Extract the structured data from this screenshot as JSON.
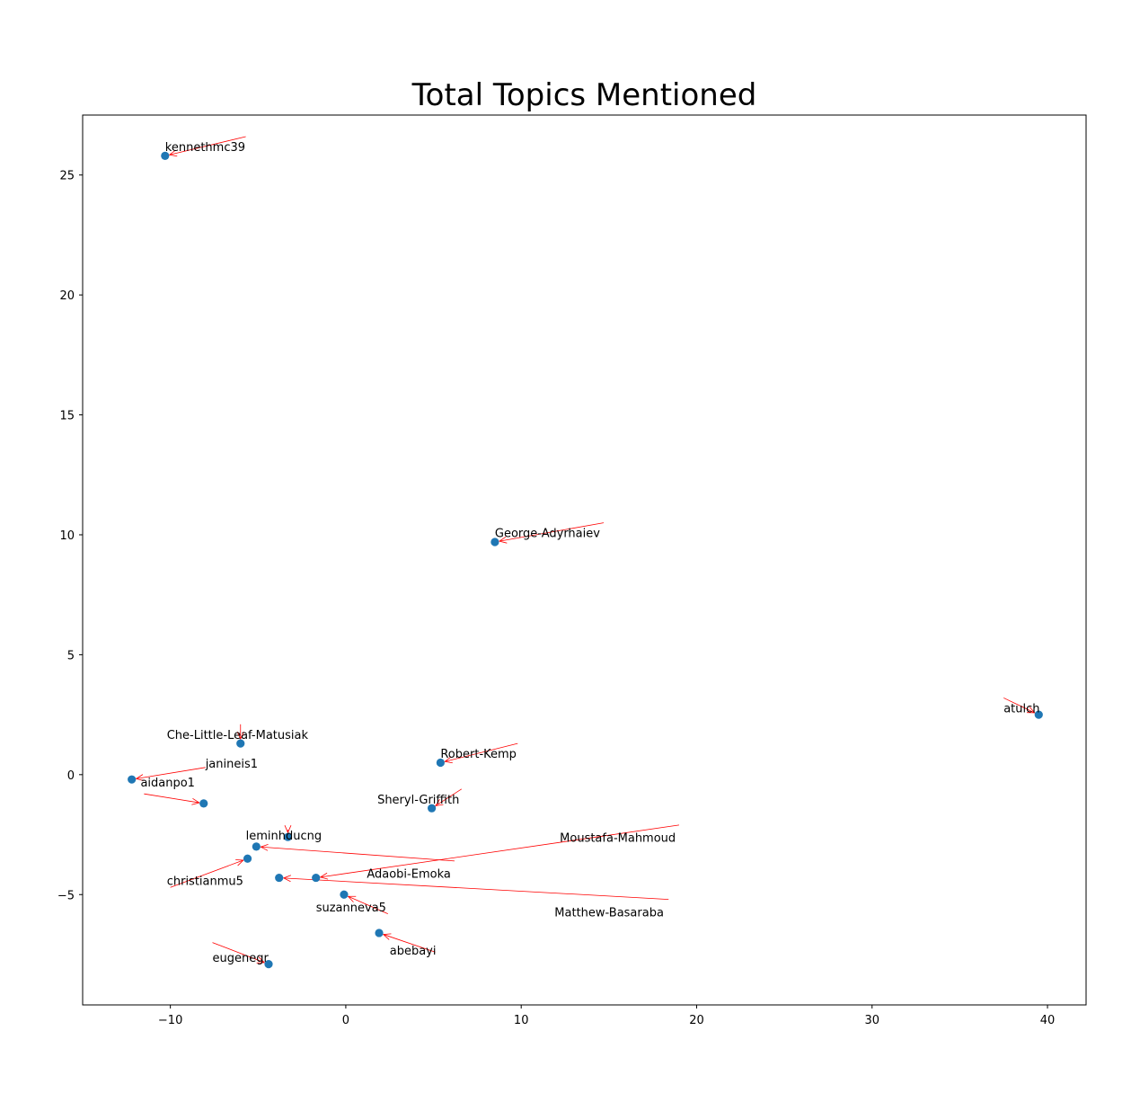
{
  "chart_data": {
    "type": "scatter",
    "title": "Total Topics Mentioned",
    "xlabel": "",
    "ylabel": "",
    "xlim": [
      -15,
      42.2
    ],
    "ylim": [
      -9.6,
      27.5
    ],
    "xticks": [
      -10,
      0,
      10,
      20,
      30,
      40
    ],
    "yticks": [
      -5,
      0,
      5,
      10,
      15,
      20,
      25
    ],
    "grid": false,
    "point_color": "#1f77b4",
    "arrow_color": "#ff0000",
    "points": [
      {
        "name": "kennethmc39",
        "x": -10.3,
        "y": 25.8,
        "label_x": -10.3,
        "label_y": 26.0,
        "arrow_from": [
          -5.7,
          26.6
        ]
      },
      {
        "name": "George-Adyrhaiev",
        "x": 8.5,
        "y": 9.7,
        "label_x": 8.5,
        "label_y": 9.9,
        "arrow_from": [
          14.7,
          10.5
        ]
      },
      {
        "name": "atulch",
        "x": 39.5,
        "y": 2.5,
        "label_x": 37.5,
        "label_y": 2.6,
        "arrow_from": [
          37.5,
          3.2
        ]
      },
      {
        "name": "Che-Little-Leaf-Matusiak",
        "x": -6.0,
        "y": 1.3,
        "label_x": -10.2,
        "label_y": 1.5,
        "arrow_from": [
          -6.0,
          2.1
        ]
      },
      {
        "name": "Robert-Kemp",
        "x": 5.4,
        "y": 0.5,
        "label_x": 5.4,
        "label_y": 0.7,
        "arrow_from": [
          9.8,
          1.3
        ]
      },
      {
        "name": "janineis1",
        "x": -12.2,
        "y": -0.2,
        "label_x": -8.0,
        "label_y": 0.3,
        "arrow_from": [
          -8.0,
          0.3
        ]
      },
      {
        "name": "aidanpo1",
        "x": -8.1,
        "y": -1.2,
        "label_x": -11.7,
        "label_y": -0.5,
        "arrow_from": [
          -11.5,
          -0.8
        ]
      },
      {
        "name": "Sheryl-Griffith",
        "x": 4.9,
        "y": -1.4,
        "label_x": 1.8,
        "label_y": -1.2,
        "arrow_from": [
          6.6,
          -0.6
        ]
      },
      {
        "name": "leminhducng",
        "x": -3.3,
        "y": -2.6,
        "label_x": -5.7,
        "label_y": -2.7,
        "arrow_from": [
          -3.3,
          -2.3
        ]
      },
      {
        "name": "Moustafa-Mahmoud",
        "x": -1.7,
        "y": -4.3,
        "label_x": 12.2,
        "label_y": -2.8,
        "arrow_from": [
          19.0,
          -2.1
        ]
      },
      {
        "name": "Adaobi-Emoka",
        "x": -5.1,
        "y": -3.0,
        "label_x": 1.2,
        "label_y": -4.3,
        "arrow_from": [
          6.2,
          -3.6
        ]
      },
      {
        "name": "christianmu5",
        "x": -5.6,
        "y": -3.5,
        "label_x": -10.2,
        "label_y": -4.6,
        "arrow_from": [
          -10.0,
          -4.7
        ]
      },
      {
        "name": "Matthew-Basaraba",
        "x": -3.8,
        "y": -4.3,
        "label_x": 11.9,
        "label_y": -5.9,
        "arrow_from": [
          18.4,
          -5.2
        ]
      },
      {
        "name": "suzanneva5",
        "x": -0.1,
        "y": -5.0,
        "label_x": -1.7,
        "label_y": -5.7,
        "arrow_from": [
          2.4,
          -5.8
        ]
      },
      {
        "name": "abebayi",
        "x": 1.9,
        "y": -6.6,
        "label_x": 2.5,
        "label_y": -7.5,
        "arrow_from": [
          5.1,
          -7.4
        ]
      },
      {
        "name": "eugenegr",
        "x": -4.4,
        "y": -7.9,
        "label_x": -7.6,
        "label_y": -7.8,
        "arrow_from": [
          -7.6,
          -7.0
        ]
      }
    ]
  }
}
